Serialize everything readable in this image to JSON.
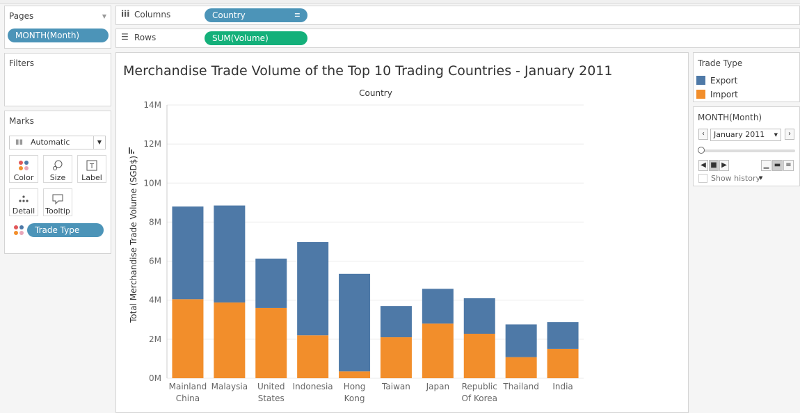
{
  "pages": {
    "title": "Pages",
    "pill": "MONTH(Month)"
  },
  "shelves": {
    "columns_label": "Columns",
    "columns_pill": "Country",
    "rows_label": "Rows",
    "rows_pill": "SUM(Volume)"
  },
  "filters": {
    "title": "Filters"
  },
  "marks": {
    "title": "Marks",
    "dropdown": "Automatic",
    "buttons": [
      "Color",
      "Size",
      "Label",
      "Detail",
      "Tooltip"
    ],
    "trade_type_pill": "Trade Type"
  },
  "legend": {
    "title": "Trade Type",
    "items": [
      {
        "label": "Export",
        "color": "#4e79a7"
      },
      {
        "label": "Import",
        "color": "#f28e2b"
      }
    ]
  },
  "page_control": {
    "title": "MONTH(Month)",
    "selected": "January 2011",
    "show_history": "Show history"
  },
  "colors": {
    "export": "#4e79a7",
    "import": "#f28e2b",
    "pill_blue": "#4c94b8",
    "pill_green": "#14b07a"
  },
  "chart_data": {
    "type": "bar",
    "stacked": true,
    "title": "Merchandise Trade Volume of the Top 10 Trading Countries - January 2011",
    "column_header": "Country",
    "ylabel": "Total Merchandise Trade Volume (SGD$)",
    "ylim": [
      0,
      14000000
    ],
    "yticks": [
      "0M",
      "2M",
      "4M",
      "6M",
      "8M",
      "10M",
      "12M",
      "14M"
    ],
    "categories": [
      [
        "Mainland",
        "China"
      ],
      [
        "Malaysia"
      ],
      [
        "United",
        "States"
      ],
      [
        "Indonesia"
      ],
      [
        "Hong",
        "Kong"
      ],
      [
        "Taiwan"
      ],
      [
        "Japan"
      ],
      [
        "Republic",
        "Of Korea"
      ],
      [
        "Thailand"
      ],
      [
        "India"
      ]
    ],
    "series": [
      {
        "name": "Import",
        "color": "#f28e2b",
        "values": [
          4050000,
          3880000,
          3600000,
          2200000,
          350000,
          2100000,
          2800000,
          2280000,
          1080000,
          1500000
        ]
      },
      {
        "name": "Export",
        "color": "#4e79a7",
        "values": [
          4750000,
          4970000,
          2530000,
          4780000,
          5000000,
          1600000,
          1780000,
          1820000,
          1680000,
          1380000
        ]
      }
    ]
  }
}
